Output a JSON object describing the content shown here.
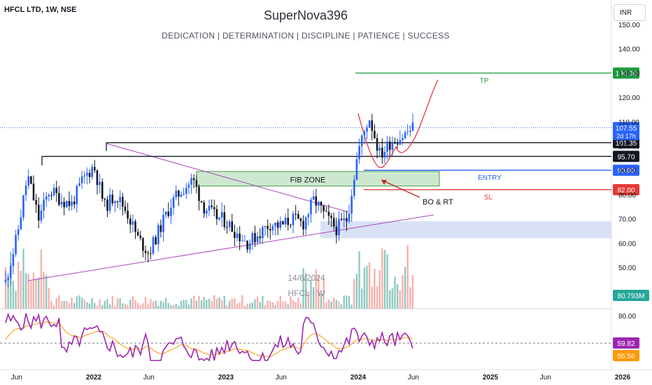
{
  "header": {
    "symbol": "HFCL LTD, 1W, NSE",
    "title": "SuperNova396",
    "subtitle": "DEDICATION | DETERMINATION | DISCIPLINE | PATIENCE | SUCCESS",
    "currency": "INR"
  },
  "watermark": {
    "date": "14/6/2024",
    "ticker": "HFCL · W"
  },
  "chart_data": [
    {
      "type": "candlestick",
      "symbol": "HFCL LTD",
      "interval": "1W",
      "exchange": "NSE",
      "y_range": [
        38,
        155
      ],
      "y_ticks": [
        50,
        60,
        70,
        80,
        90,
        100,
        110,
        120,
        130,
        140,
        150
      ],
      "y_tick_labels": [
        "50.00",
        "60.00",
        "70.00",
        "80.00",
        "90.00",
        "100.00",
        "110.00",
        "120.00",
        "130.00",
        "140.00",
        "150.00"
      ],
      "x_tick_labels": [
        "Jun",
        "2022",
        "Jun",
        "2023",
        "Jun",
        "2024",
        "Jun",
        "2025",
        "Jun",
        "2026"
      ],
      "last_price": 107.55,
      "countdown": "2d 17h",
      "price_path": [
        [
          "2021-05",
          44
        ],
        [
          "2021-06",
          62
        ],
        [
          "2021-07",
          88
        ],
        [
          "2021-08",
          70
        ],
        [
          "2021-09",
          82
        ],
        [
          "2021-10",
          78
        ],
        [
          "2021-11",
          76
        ],
        [
          "2021-12",
          86
        ],
        [
          "2022-01",
          92
        ],
        [
          "2022-02",
          75
        ],
        [
          "2022-03",
          80
        ],
        [
          "2022-04",
          73
        ],
        [
          "2022-05",
          62
        ],
        [
          "2022-06",
          56
        ],
        [
          "2022-07",
          66
        ],
        [
          "2022-08",
          76
        ],
        [
          "2022-09",
          82
        ],
        [
          "2022-10",
          86
        ],
        [
          "2022-11",
          75
        ],
        [
          "2022-12",
          71
        ],
        [
          "2023-01",
          69
        ],
        [
          "2023-02",
          64
        ],
        [
          "2023-03",
          60
        ],
        [
          "2023-04",
          64
        ],
        [
          "2023-05",
          68
        ],
        [
          "2023-06",
          67
        ],
        [
          "2023-07",
          70
        ],
        [
          "2023-08",
          68
        ],
        [
          "2023-09",
          78
        ],
        [
          "2023-10",
          71
        ],
        [
          "2023-11",
          66
        ],
        [
          "2023-12",
          70
        ],
        [
          "2024-01",
          98
        ],
        [
          "2024-02",
          112
        ],
        [
          "2024-03",
          96
        ],
        [
          "2024-04",
          102
        ],
        [
          "2024-05",
          104
        ],
        [
          "2024-06",
          107.55
        ]
      ],
      "levels": [
        {
          "label": "TP",
          "price": 130.0,
          "price_label": "130.00",
          "color": "#1e9a3f"
        },
        {
          "label": "ENTRY",
          "price": 90.0,
          "price_label": "90.00",
          "color": "#2962ff"
        },
        {
          "label": "SL",
          "price": 82.0,
          "price_label": "82.00",
          "color": "#e53935"
        },
        {
          "label": "",
          "price": 101.35,
          "price_label": "101.35",
          "color": "#131722"
        },
        {
          "label": "",
          "price": 95.7,
          "price_label": "95.70",
          "color": "#131722"
        }
      ],
      "annotations": [
        "FIB ZONE",
        "BO & RT",
        "TP",
        "ENTRY",
        "SL"
      ],
      "volume_label": "80.793M"
    },
    {
      "type": "line",
      "name": "RSI",
      "y_ticks": [
        80
      ],
      "y_tick_labels": [
        "80.00"
      ],
      "rsi_value": "59.82",
      "rsi_ma_value": "55.56",
      "series_colors": {
        "rsi": "#9c27b0",
        "ma": "#ff9800"
      }
    }
  ]
}
